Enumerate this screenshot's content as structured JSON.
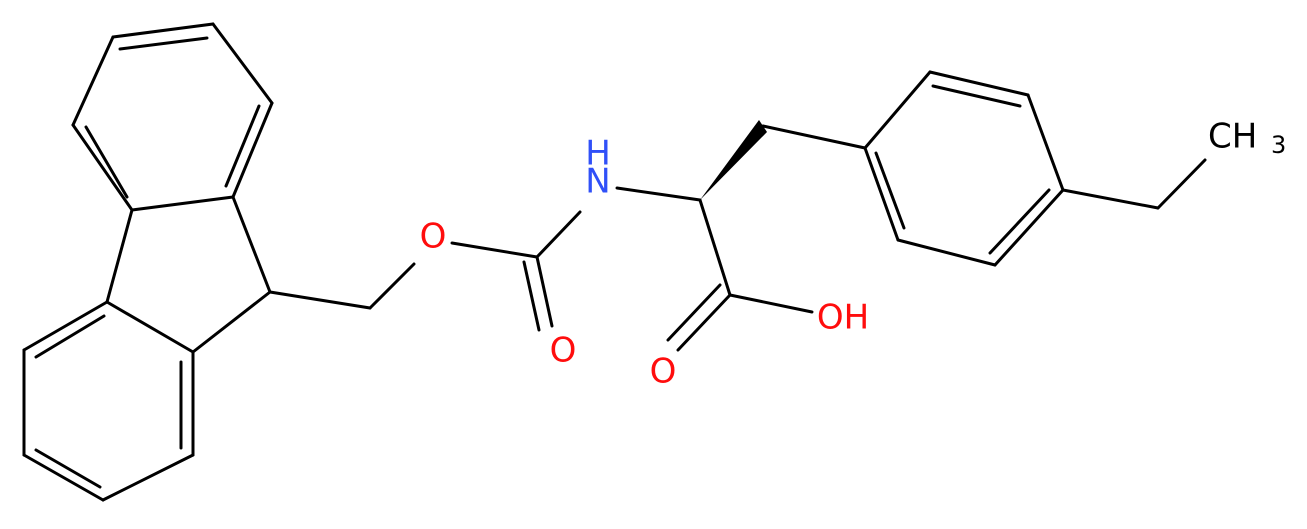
{
  "atoms": [
    {
      "label": "O"
    },
    {
      "label": "H"
    },
    {
      "label": "N"
    },
    {
      "label": "O"
    },
    {
      "label": "O"
    },
    {
      "label": "OH"
    },
    {
      "label": "CH",
      "subscript": "3"
    }
  ]
}
